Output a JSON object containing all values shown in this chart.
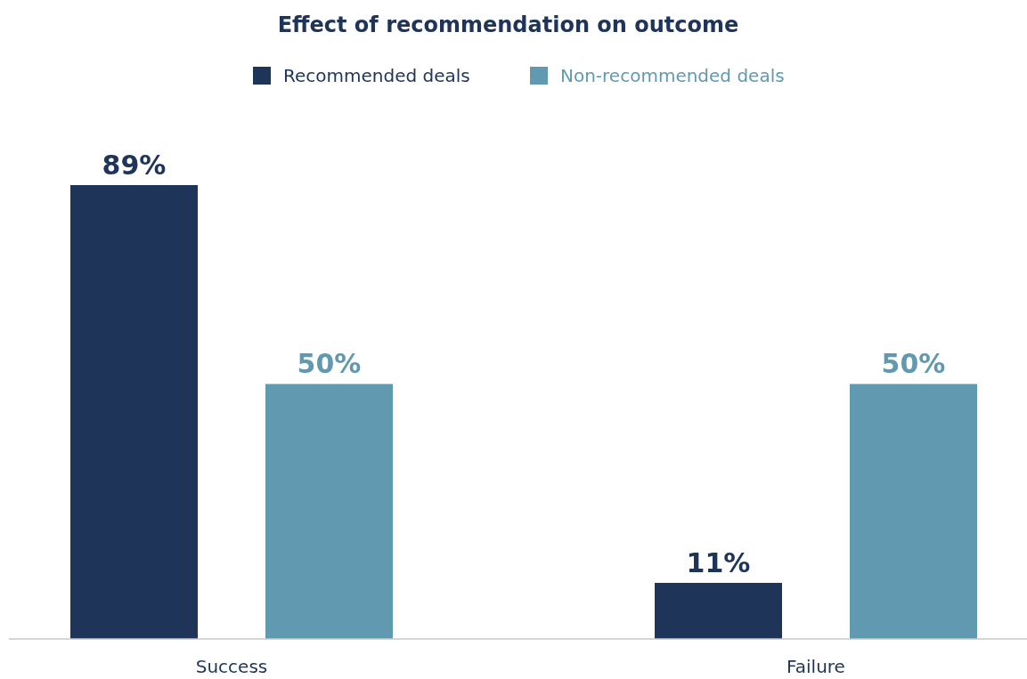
{
  "chart_data": {
    "type": "bar",
    "title": "Effect of recommendation on outcome",
    "categories": [
      "Success",
      "Failure"
    ],
    "series": [
      {
        "name": "Recommended deals",
        "color": "#1e3459",
        "values": [
          89,
          11
        ],
        "value_labels": [
          "89%",
          "11%"
        ]
      },
      {
        "name": "Non-recommended deals",
        "color": "#6199b0",
        "values": [
          50,
          50
        ],
        "value_labels": [
          "50%",
          "50%"
        ]
      }
    ],
    "legend": "top",
    "grid": false
  }
}
